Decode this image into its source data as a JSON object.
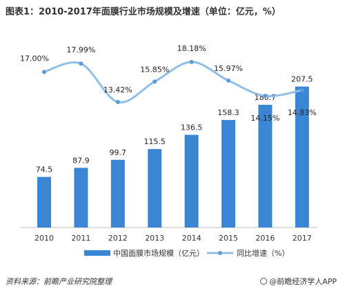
{
  "title": "图表1：2010-2017年面膜行业市场规模及增速（单位：亿元，%）",
  "source": "资料来源：前瞻产业研究院整理",
  "brand": "@前瞻经济学人APP",
  "colors": {
    "bar": "#3b86d4",
    "line": "#8fbfe8",
    "marker": "#5b9bd5"
  },
  "chart_data": {
    "type": "bar",
    "categories": [
      "2010",
      "2011",
      "2012",
      "2013",
      "2014",
      "2015",
      "2016",
      "2017"
    ],
    "series": [
      {
        "name": "中国面膜市场规模（亿元）",
        "type": "bar",
        "values": [
          74.5,
          87.9,
          99.7,
          115.5,
          136.5,
          158.3,
          180.7,
          207.5
        ],
        "labels": [
          "74.5",
          "87.9",
          "99.7",
          "115.5",
          "136.5",
          "158.3",
          "180.7",
          "207.5"
        ]
      },
      {
        "name": "同比增速（%）",
        "type": "line",
        "values": [
          17.0,
          17.99,
          13.42,
          15.85,
          18.18,
          15.97,
          14.15,
          14.83
        ],
        "labels": [
          "17.00%",
          "17.99%",
          "13.42%",
          "15.85%",
          "18.18%",
          "15.97%",
          "14.15%",
          "14.83%"
        ]
      }
    ],
    "legend_position": "bottom",
    "grid": false
  }
}
